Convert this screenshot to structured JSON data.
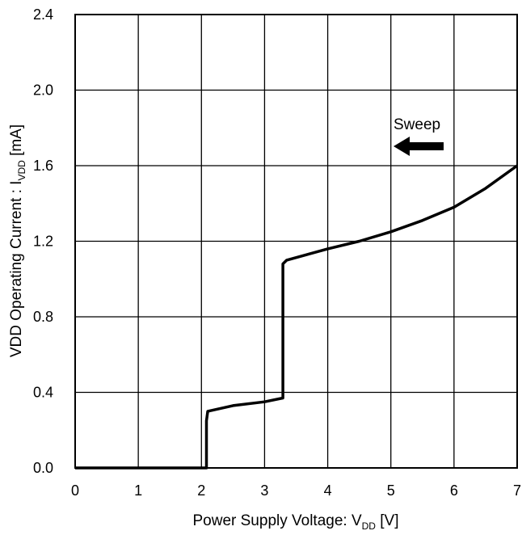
{
  "chart_data": {
    "type": "line",
    "title": "",
    "xlabel": {
      "main": "Power Supply Voltage: V",
      "sub": "DD",
      "unit": " [V]"
    },
    "ylabel": {
      "main": "VDD Operating Current : I",
      "sub": "VDD",
      "unit": " [mA]"
    },
    "xlim": [
      0,
      7
    ],
    "ylim": [
      0,
      2.4
    ],
    "xticks": [
      "0",
      "1",
      "2",
      "3",
      "4",
      "5",
      "6",
      "7"
    ],
    "yticks": [
      "0.0",
      "0.4",
      "0.8",
      "1.2",
      "1.6",
      "2.0",
      "2.4"
    ],
    "grid": true,
    "annotation": {
      "text": "Sweep",
      "arrow_direction": "left"
    },
    "series": [
      {
        "x": [
          0,
          2.08,
          2.08,
          2.1,
          2.5,
          3.0,
          3.29,
          3.29,
          3.35,
          4.0,
          4.5,
          5.0,
          5.5,
          6.0,
          6.5,
          7.0
        ],
        "y": [
          0,
          0,
          0.25,
          0.3,
          0.33,
          0.35,
          0.37,
          1.08,
          1.1,
          1.16,
          1.2,
          1.25,
          1.31,
          1.38,
          1.48,
          1.6
        ]
      }
    ]
  }
}
